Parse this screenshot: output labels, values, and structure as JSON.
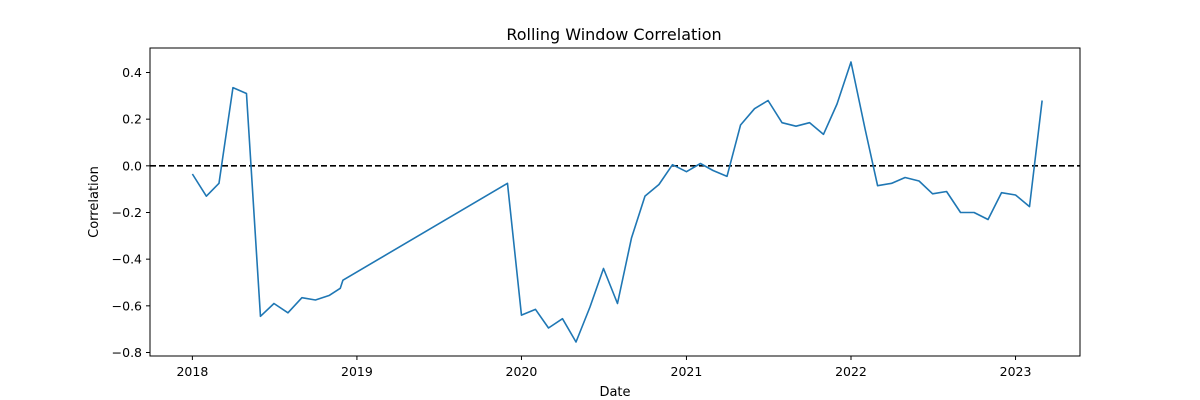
{
  "chart_data": {
    "type": "line",
    "title": "Rolling Window Correlation",
    "xlabel": "Date",
    "ylabel": "Correlation",
    "x_ticks": [
      "2018",
      "2019",
      "2020",
      "2021",
      "2022",
      "2023"
    ],
    "y_ticks": [
      "0.4",
      "0.2",
      "0.0",
      "−0.2",
      "−0.4",
      "−0.6",
      "−0.8"
    ],
    "xlim": [
      "2017-09-29",
      "2023-05-24"
    ],
    "ylim": [
      -0.815,
      0.505
    ],
    "grid": false,
    "legend": "none",
    "reference_line": {
      "y": 0.0,
      "style": "dashed",
      "color": "#000000"
    },
    "series": [
      {
        "color": "#1f77b4",
        "points": [
          [
            "2018-01-01",
            -0.035
          ],
          [
            "2018-02-01",
            -0.13
          ],
          [
            "2018-03-01",
            -0.075
          ],
          [
            "2018-04-01",
            0.335
          ],
          [
            "2018-05-01",
            0.31
          ],
          [
            "2018-06-01",
            -0.645
          ],
          [
            "2018-07-01",
            -0.59
          ],
          [
            "2018-08-01",
            -0.63
          ],
          [
            "2018-09-01",
            -0.565
          ],
          [
            "2018-10-01",
            -0.575
          ],
          [
            "2018-11-01",
            -0.555
          ],
          [
            "2018-11-25",
            -0.525
          ],
          [
            "2018-12-01",
            -0.49
          ],
          [
            "2019-12-01",
            -0.075
          ],
          [
            "2020-01-01",
            -0.64
          ],
          [
            "2020-02-01",
            -0.615
          ],
          [
            "2020-03-01",
            -0.695
          ],
          [
            "2020-04-01",
            -0.655
          ],
          [
            "2020-05-01",
            -0.755
          ],
          [
            "2020-06-01",
            -0.605
          ],
          [
            "2020-07-01",
            -0.44
          ],
          [
            "2020-08-01",
            -0.59
          ],
          [
            "2020-09-01",
            -0.31
          ],
          [
            "2020-10-01",
            -0.13
          ],
          [
            "2020-11-01",
            -0.08
          ],
          [
            "2020-12-01",
            0.005
          ],
          [
            "2021-01-01",
            -0.025
          ],
          [
            "2021-02-01",
            0.01
          ],
          [
            "2021-03-01",
            -0.02
          ],
          [
            "2021-04-01",
            -0.045
          ],
          [
            "2021-05-01",
            0.175
          ],
          [
            "2021-06-01",
            0.245
          ],
          [
            "2021-07-01",
            0.28
          ],
          [
            "2021-08-01",
            0.185
          ],
          [
            "2021-09-01",
            0.17
          ],
          [
            "2021-10-01",
            0.185
          ],
          [
            "2021-11-01",
            0.135
          ],
          [
            "2021-12-01",
            0.265
          ],
          [
            "2022-01-01",
            0.445
          ],
          [
            "2022-02-01",
            0.16
          ],
          [
            "2022-03-01",
            -0.085
          ],
          [
            "2022-04-01",
            -0.075
          ],
          [
            "2022-05-01",
            -0.05
          ],
          [
            "2022-06-01",
            -0.065
          ],
          [
            "2022-07-01",
            -0.12
          ],
          [
            "2022-08-01",
            -0.11
          ],
          [
            "2022-09-01",
            -0.2
          ],
          [
            "2022-10-01",
            -0.2
          ],
          [
            "2022-11-01",
            -0.23
          ],
          [
            "2022-12-01",
            -0.115
          ],
          [
            "2023-01-01",
            -0.125
          ],
          [
            "2023-02-01",
            -0.175
          ],
          [
            "2023-03-01",
            0.28
          ]
        ]
      }
    ]
  }
}
